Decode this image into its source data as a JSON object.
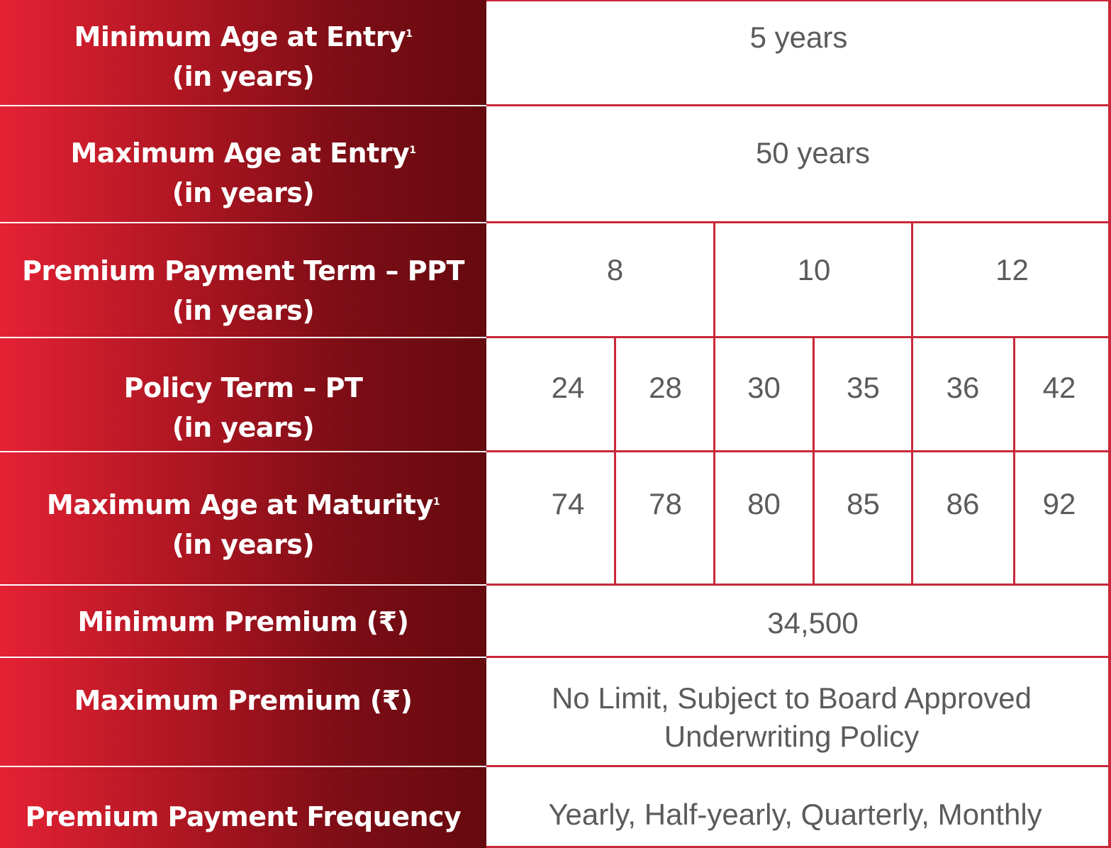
{
  "rows": {
    "min_age": {
      "label_line1": "Minimum Age at Entry",
      "sup": "1",
      "label_line2": "(in years)",
      "value": "5 years"
    },
    "max_age": {
      "label_line1": "Maximum Age at Entry",
      "sup": "1",
      "label_line2": "(in years)",
      "value": "50 years"
    },
    "ppt": {
      "label_line1": "Premium Payment Term – PPT",
      "label_line2": "(in years)",
      "values": [
        "8",
        "10",
        "12"
      ]
    },
    "pt": {
      "label_line1": "Policy Term – PT",
      "label_line2": "(in years)",
      "values": [
        "24",
        "28",
        "30",
        "35",
        "36",
        "42"
      ]
    },
    "max_maturity": {
      "label_line1": "Maximum Age at Maturity",
      "sup": "1",
      "label_line2": "(in years)",
      "values": [
        "74",
        "78",
        "80",
        "85",
        "86",
        "92"
      ]
    },
    "min_premium": {
      "label": "Minimum Premium (₹)",
      "value": "34,500"
    },
    "max_premium": {
      "label": "Maximum Premium (₹)",
      "value_line1": "No Limit, Subject to Board Approved",
      "value_line2": "Underwriting Policy"
    },
    "frequency": {
      "label": "Premium Payment Frequency",
      "value": "Yearly, Half-yearly, Quarterly, Monthly"
    }
  },
  "colors": {
    "label_gradient_start": "#e42234",
    "label_gradient_end": "#650a0f",
    "border": "#c8283a",
    "value_text": "#5b5b5b"
  }
}
